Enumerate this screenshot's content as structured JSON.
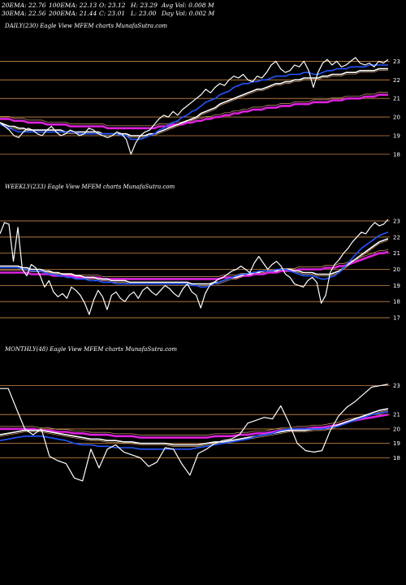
{
  "header": {
    "ema20": "20EMA: 22.76",
    "ema30": "30EMA: 22.56",
    "ema100": "100EMA: 22.13",
    "ema200": "200EMA: 21.44",
    "open": "O: 23.12",
    "close": "C: 23.01",
    "high": "H: 23.29",
    "low": "L: 23.00",
    "avg_vol": "Avg Vol: 0.008  M",
    "day_vol": "Day Vol: 0.002  M"
  },
  "colors": {
    "background": "#000000",
    "price": "#ffffff",
    "gridline": "#cc8844",
    "ema_short": "#2255ff",
    "ema_mid": "#ffffff",
    "ema_long": "#dd22dd",
    "ema_tan": "#d4a070"
  },
  "chart_data": [
    {
      "type": "line",
      "title": "DAILY(230) Eagle  View  MFEM charts MunafaSutra.com",
      "ylim": [
        17.6,
        23.5
      ],
      "y_ticks": [
        23,
        22,
        21,
        20,
        19,
        18
      ],
      "price": [
        19.7,
        19.5,
        19.3,
        19.0,
        18.9,
        19.2,
        19.4,
        19.3,
        19.1,
        19.0,
        19.3,
        19.5,
        19.2,
        19.0,
        19.1,
        19.3,
        19.2,
        19.0,
        19.1,
        19.4,
        19.3,
        19.1,
        19.0,
        18.9,
        19.0,
        19.2,
        19.1,
        18.8,
        18.0,
        18.6,
        19.0,
        19.2,
        19.3,
        19.6,
        19.9,
        20.1,
        20.0,
        20.3,
        20.1,
        20.4,
        20.6,
        20.8,
        21.0,
        21.2,
        21.5,
        21.3,
        21.6,
        21.8,
        21.7,
        22.0,
        22.2,
        22.1,
        22.3,
        22.0,
        21.9,
        22.2,
        22.1,
        22.4,
        22.8,
        23.0,
        22.6,
        22.4,
        22.5,
        22.8,
        22.7,
        23.0,
        22.5,
        21.6,
        22.4,
        22.9,
        23.1,
        22.8,
        23.0,
        22.7,
        22.8,
        23.0,
        23.2,
        22.9,
        22.8,
        22.9,
        22.7,
        23.0,
        22.9,
        23.1
      ],
      "ema_short": [
        19.6,
        19.5,
        19.4,
        19.3,
        19.2,
        19.2,
        19.2,
        19.2,
        19.2,
        19.2,
        19.2,
        19.2,
        19.2,
        19.2,
        19.2,
        19.2,
        19.2,
        19.1,
        19.1,
        19.1,
        19.1,
        19.1,
        19.1,
        19.1,
        19.1,
        19.1,
        19.0,
        19.0,
        18.8,
        18.8,
        18.8,
        18.9,
        19.0,
        19.1,
        19.3,
        19.4,
        19.6,
        19.7,
        19.8,
        20.0,
        20.1,
        20.3,
        20.4,
        20.6,
        20.8,
        20.9,
        21.0,
        21.2,
        21.3,
        21.4,
        21.6,
        21.7,
        21.8,
        21.8,
        21.9,
        21.9,
        22.0,
        22.0,
        22.1,
        22.2,
        22.2,
        22.2,
        22.3,
        22.3,
        22.3,
        22.4,
        22.4,
        22.3,
        22.3,
        22.4,
        22.5,
        22.5,
        22.6,
        22.6,
        22.6,
        22.7,
        22.7,
        22.7,
        22.7,
        22.8,
        22.8,
        22.8,
        22.8,
        22.8
      ],
      "ema_mid": [
        19.7,
        19.6,
        19.5,
        19.5,
        19.4,
        19.4,
        19.3,
        19.3,
        19.3,
        19.3,
        19.3,
        19.3,
        19.3,
        19.3,
        19.2,
        19.2,
        19.2,
        19.2,
        19.2,
        19.2,
        19.2,
        19.2,
        19.1,
        19.1,
        19.1,
        19.1,
        19.1,
        19.1,
        19.0,
        19.0,
        19.0,
        19.0,
        19.1,
        19.1,
        19.2,
        19.3,
        19.4,
        19.5,
        19.6,
        19.7,
        19.8,
        19.9,
        20.0,
        20.2,
        20.3,
        20.4,
        20.5,
        20.7,
        20.8,
        20.9,
        21.0,
        21.1,
        21.2,
        21.3,
        21.4,
        21.5,
        21.5,
        21.6,
        21.7,
        21.8,
        21.8,
        21.9,
        21.9,
        22.0,
        22.0,
        22.1,
        22.1,
        22.1,
        22.1,
        22.2,
        22.2,
        22.3,
        22.3,
        22.3,
        22.4,
        22.4,
        22.4,
        22.5,
        22.5,
        22.5,
        22.5,
        22.6,
        22.6,
        22.6
      ],
      "ema_long": [
        19.9,
        19.9,
        19.9,
        19.8,
        19.8,
        19.8,
        19.7,
        19.7,
        19.7,
        19.7,
        19.6,
        19.6,
        19.6,
        19.6,
        19.6,
        19.5,
        19.5,
        19.5,
        19.5,
        19.5,
        19.5,
        19.5,
        19.5,
        19.4,
        19.4,
        19.4,
        19.4,
        19.4,
        19.4,
        19.4,
        19.4,
        19.4,
        19.4,
        19.4,
        19.5,
        19.5,
        19.5,
        19.6,
        19.6,
        19.6,
        19.7,
        19.7,
        19.8,
        19.8,
        19.9,
        19.9,
        20.0,
        20.0,
        20.1,
        20.1,
        20.2,
        20.2,
        20.3,
        20.3,
        20.4,
        20.4,
        20.4,
        20.5,
        20.5,
        20.5,
        20.6,
        20.6,
        20.6,
        20.7,
        20.7,
        20.7,
        20.7,
        20.8,
        20.8,
        20.8,
        20.8,
        20.9,
        20.9,
        20.9,
        21.0,
        21.0,
        21.0,
        21.0,
        21.1,
        21.1,
        21.1,
        21.2,
        21.2,
        21.2
      ]
    },
    {
      "type": "line",
      "title": "WEEKLY(233) Eagle  View  MFEM charts MunafaSutra.com",
      "ylim": [
        16.6,
        23.4
      ],
      "y_ticks": [
        23,
        22,
        21,
        20,
        19,
        18,
        17
      ],
      "price": [
        22.2,
        22.9,
        22.8,
        20.5,
        22.6,
        20.0,
        19.6,
        20.3,
        20.1,
        19.6,
        18.9,
        19.3,
        18.6,
        18.3,
        18.5,
        18.2,
        18.9,
        18.7,
        18.4,
        17.9,
        17.2,
        18.1,
        18.7,
        18.3,
        17.5,
        18.4,
        18.6,
        18.2,
        18.0,
        18.4,
        18.6,
        18.2,
        18.7,
        18.9,
        18.6,
        18.4,
        18.7,
        19.0,
        18.8,
        18.5,
        18.3,
        18.8,
        19.1,
        18.6,
        18.4,
        17.6,
        18.5,
        19.0,
        19.2,
        19.4,
        19.5,
        19.7,
        19.9,
        20.0,
        20.2,
        20.0,
        19.8,
        20.4,
        20.8,
        20.4,
        20.0,
        20.3,
        20.5,
        20.2,
        19.7,
        19.5,
        19.1,
        19.0,
        18.9,
        19.3,
        19.5,
        19.2,
        17.9,
        18.4,
        19.8,
        20.3,
        20.6,
        21.0,
        21.3,
        21.7,
        22.0,
        22.3,
        22.2,
        22.6,
        22.9,
        22.7,
        22.8,
        23.1
      ],
      "ema_short": [
        20.1,
        20.1,
        20.1,
        20.1,
        20.1,
        20.0,
        20.0,
        19.9,
        19.9,
        19.9,
        19.8,
        19.7,
        19.7,
        19.6,
        19.6,
        19.5,
        19.5,
        19.4,
        19.4,
        19.4,
        19.3,
        19.3,
        19.3,
        19.2,
        19.2,
        19.2,
        19.1,
        19.1,
        19.1,
        19.1,
        19.1,
        19.1,
        19.1,
        19.1,
        19.1,
        19.1,
        19.1,
        19.1,
        19.1,
        19.1,
        19.1,
        19.1,
        19.1,
        19.0,
        19.0,
        18.9,
        18.9,
        19.0,
        19.1,
        19.2,
        19.3,
        19.4,
        19.5,
        19.6,
        19.7,
        19.7,
        19.8,
        19.8,
        19.9,
        19.9,
        19.9,
        19.9,
        20.0,
        20.0,
        20.0,
        19.9,
        19.8,
        19.7,
        19.6,
        19.6,
        19.6,
        19.5,
        19.4,
        19.4,
        19.5,
        19.6,
        19.8,
        20.1,
        20.4,
        20.7,
        21.0,
        21.3,
        21.5,
        21.7,
        21.9,
        22.1,
        22.2,
        22.3
      ],
      "ema_mid": [
        20.2,
        20.2,
        20.2,
        20.2,
        20.2,
        20.1,
        20.1,
        20.0,
        20.0,
        20.0,
        19.9,
        19.9,
        19.8,
        19.8,
        19.7,
        19.7,
        19.7,
        19.6,
        19.6,
        19.5,
        19.5,
        19.5,
        19.4,
        19.4,
        19.4,
        19.3,
        19.3,
        19.3,
        19.3,
        19.2,
        19.2,
        19.2,
        19.2,
        19.2,
        19.2,
        19.2,
        19.2,
        19.2,
        19.2,
        19.2,
        19.2,
        19.2,
        19.2,
        19.1,
        19.1,
        19.1,
        19.1,
        19.1,
        19.2,
        19.2,
        19.3,
        19.4,
        19.5,
        19.5,
        19.6,
        19.7,
        19.7,
        19.8,
        19.8,
        19.9,
        19.9,
        19.9,
        19.9,
        20.0,
        20.0,
        20.0,
        19.9,
        19.9,
        19.8,
        19.8,
        19.8,
        19.7,
        19.7,
        19.7,
        19.7,
        19.8,
        19.9,
        20.1,
        20.3,
        20.5,
        20.7,
        20.9,
        21.1,
        21.3,
        21.5,
        21.7,
        21.8,
        21.9
      ],
      "ema_long": [
        19.8,
        19.8,
        19.8,
        19.8,
        19.8,
        19.8,
        19.8,
        19.7,
        19.7,
        19.7,
        19.7,
        19.7,
        19.6,
        19.6,
        19.6,
        19.6,
        19.6,
        19.5,
        19.5,
        19.5,
        19.5,
        19.5,
        19.5,
        19.4,
        19.4,
        19.4,
        19.4,
        19.4,
        19.4,
        19.4,
        19.4,
        19.4,
        19.4,
        19.4,
        19.4,
        19.4,
        19.4,
        19.4,
        19.4,
        19.4,
        19.4,
        19.4,
        19.4,
        19.4,
        19.4,
        19.4,
        19.4,
        19.4,
        19.4,
        19.4,
        19.5,
        19.5,
        19.5,
        19.5,
        19.6,
        19.6,
        19.6,
        19.7,
        19.7,
        19.7,
        19.8,
        19.8,
        19.8,
        19.9,
        19.9,
        19.9,
        19.9,
        20.0,
        20.0,
        20.0,
        20.0,
        20.0,
        20.0,
        20.1,
        20.1,
        20.1,
        20.2,
        20.2,
        20.3,
        20.4,
        20.5,
        20.6,
        20.7,
        20.8,
        20.9,
        21.0,
        21.0,
        21.1
      ]
    },
    {
      "type": "line",
      "title": "MONTHLY(48) Eagle  View  MFEM charts MunafaSutra.com",
      "ylim": [
        16.0,
        23.6
      ],
      "y_ticks": [
        23,
        21,
        20,
        19,
        18
      ],
      "price": [
        22.8,
        22.8,
        21.4,
        20.0,
        19.6,
        20.0,
        18.1,
        17.8,
        17.6,
        16.6,
        16.4,
        18.6,
        17.3,
        18.6,
        18.9,
        18.4,
        18.2,
        18.0,
        17.4,
        17.7,
        18.7,
        18.6,
        17.6,
        16.8,
        18.3,
        18.6,
        19.0,
        19.2,
        19.3,
        19.6,
        20.4,
        20.6,
        20.8,
        20.7,
        21.6,
        20.4,
        19.0,
        18.5,
        18.4,
        18.5,
        19.9,
        20.9,
        21.5,
        21.9,
        22.4,
        22.9,
        23.0,
        23.1
      ],
      "ema_short": [
        19.2,
        19.3,
        19.4,
        19.5,
        19.5,
        19.5,
        19.4,
        19.3,
        19.2,
        19.0,
        18.9,
        18.9,
        18.8,
        18.8,
        18.7,
        18.7,
        18.7,
        18.6,
        18.6,
        18.6,
        18.6,
        18.6,
        18.6,
        18.6,
        18.7,
        18.8,
        18.9,
        19.0,
        19.1,
        19.2,
        19.3,
        19.5,
        19.6,
        19.7,
        19.9,
        20.0,
        20.0,
        20.0,
        20.0,
        20.0,
        20.1,
        20.2,
        20.4,
        20.6,
        20.8,
        21.0,
        21.1,
        21.2
      ],
      "ema_mid": [
        19.6,
        19.7,
        19.8,
        19.9,
        19.9,
        19.9,
        19.8,
        19.7,
        19.6,
        19.5,
        19.4,
        19.3,
        19.3,
        19.2,
        19.2,
        19.1,
        19.1,
        19.0,
        19.0,
        19.0,
        19.0,
        18.9,
        18.9,
        18.9,
        18.9,
        19.0,
        19.1,
        19.1,
        19.2,
        19.3,
        19.4,
        19.5,
        19.6,
        19.7,
        19.8,
        19.9,
        19.9,
        19.9,
        20.0,
        20.0,
        20.1,
        20.3,
        20.5,
        20.7,
        20.9,
        21.1,
        21.3,
        21.4
      ],
      "ema_long": [
        20.0,
        20.0,
        20.0,
        20.0,
        20.0,
        19.9,
        19.9,
        19.8,
        19.8,
        19.7,
        19.7,
        19.6,
        19.6,
        19.6,
        19.5,
        19.5,
        19.5,
        19.4,
        19.4,
        19.4,
        19.4,
        19.4,
        19.4,
        19.4,
        19.4,
        19.4,
        19.5,
        19.5,
        19.5,
        19.6,
        19.6,
        19.7,
        19.7,
        19.8,
        19.9,
        19.9,
        20.0,
        20.0,
        20.1,
        20.1,
        20.2,
        20.3,
        20.5,
        20.6,
        20.7,
        20.8,
        20.9,
        21.0
      ]
    }
  ]
}
